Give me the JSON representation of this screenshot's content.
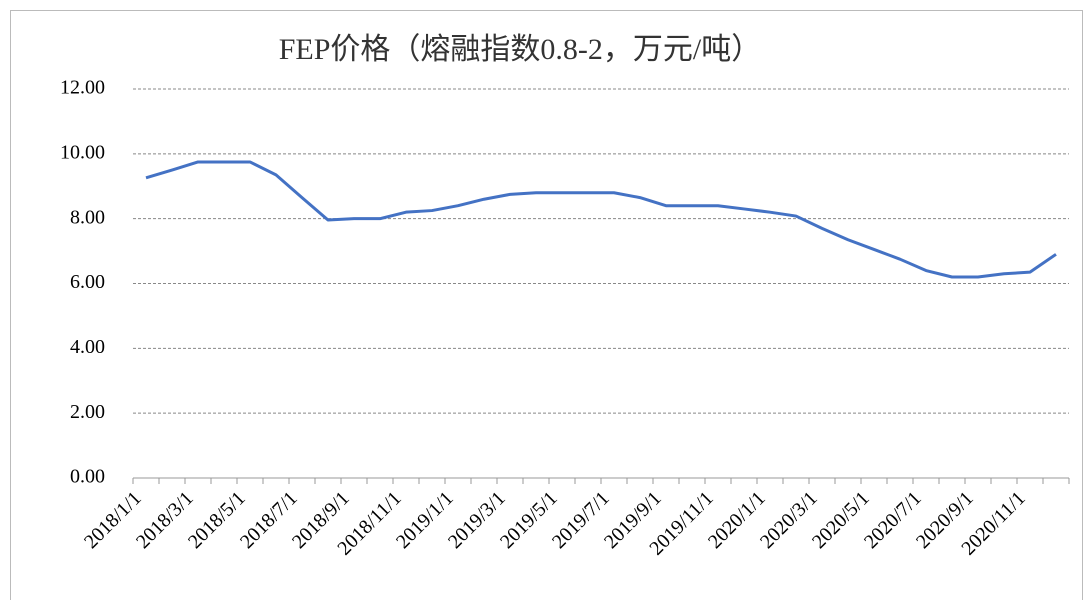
{
  "chart_data": {
    "type": "line",
    "title": "FEP价格（熔融指数0.8-2，万元/吨）",
    "categories": [
      "2018/1/1",
      null,
      "2018/3/1",
      null,
      "2018/5/1",
      null,
      "2018/7/1",
      null,
      "2018/9/1",
      null,
      "2018/11/1",
      null,
      "2019/1/1",
      null,
      "2019/3/1",
      null,
      "2019/5/1",
      null,
      "2019/7/1",
      null,
      "2019/9/1",
      null,
      "2019/11/1",
      null,
      "2020/1/1",
      null,
      "2020/3/1",
      null,
      "2020/5/1",
      null,
      "2020/7/1",
      null,
      "2020/9/1",
      null,
      "2020/11/1",
      null
    ],
    "series": [
      {
        "color": "#4472c4",
        "values": [
          9.26,
          9.5,
          9.75,
          9.75,
          9.75,
          9.35,
          8.65,
          7.96,
          8.0,
          8.0,
          8.2,
          8.25,
          8.4,
          8.6,
          8.75,
          8.8,
          8.8,
          8.8,
          8.8,
          8.65,
          8.4,
          8.4,
          8.4,
          8.3,
          8.2,
          8.08,
          7.7,
          7.35,
          7.05,
          6.75,
          6.4,
          6.2,
          6.2,
          6.3,
          6.35,
          6.9
        ]
      }
    ],
    "ylim": [
      0,
      12
    ],
    "yticks": [
      {
        "value": 0,
        "label": "0.00"
      },
      {
        "value": 2,
        "label": "2.00"
      },
      {
        "value": 4,
        "label": "4.00"
      },
      {
        "value": 6,
        "label": "6.00"
      },
      {
        "value": 8,
        "label": "8.00"
      },
      {
        "value": 10,
        "label": "10.00"
      },
      {
        "value": 12,
        "label": "12.00"
      }
    ],
    "grid": true
  }
}
